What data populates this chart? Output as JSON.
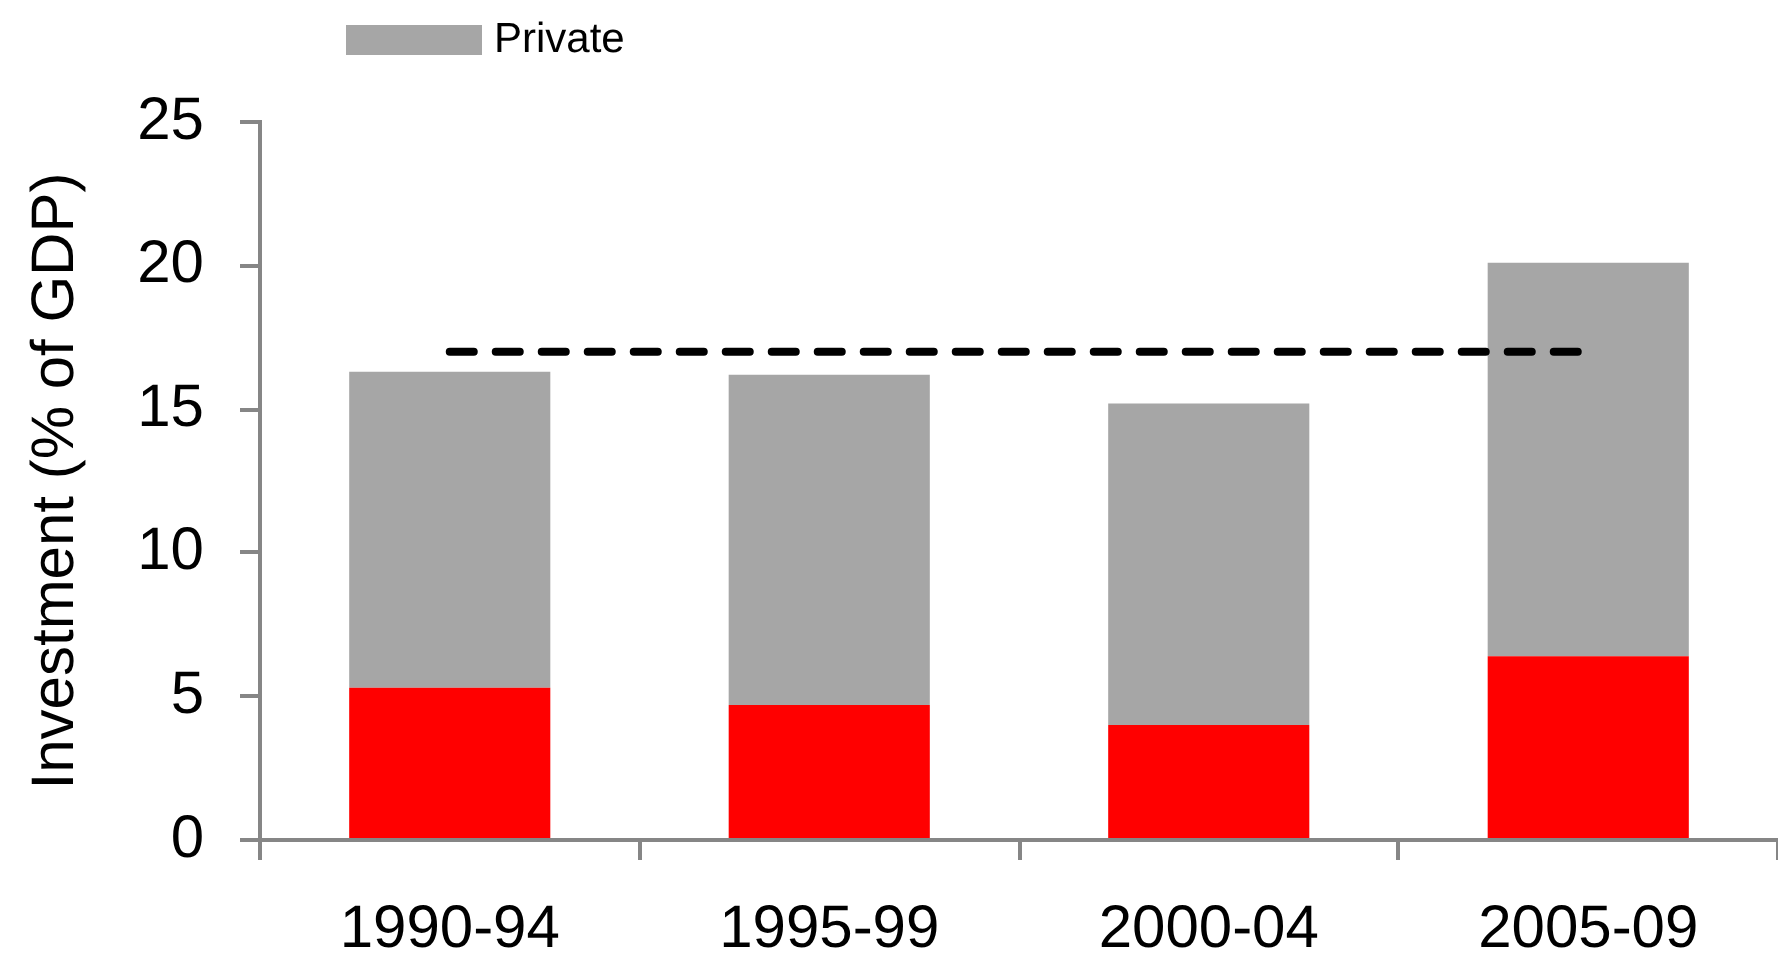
{
  "chart_data": {
    "type": "bar",
    "stacked": true,
    "categories": [
      "1990-94",
      "1995-99",
      "2000-04",
      "2005-09"
    ],
    "series": [
      {
        "color": "#ff0000",
        "values": [
          5.3,
          4.7,
          4.0,
          6.4
        ]
      },
      {
        "name": "Private",
        "color": "#a6a6a6",
        "values": [
          11.0,
          11.5,
          11.2,
          13.7
        ]
      },
      {
        "type": "line",
        "color": "#000000",
        "values": [
          17,
          17,
          17,
          17
        ],
        "line_style": "dashed",
        "marker": "none"
      }
    ],
    "ylabel": "Investment (% of GDP)",
    "ylim": [
      0,
      25
    ],
    "yticks": [
      0,
      5,
      10,
      15,
      20,
      25
    ],
    "grid": false,
    "legend": "top left"
  }
}
